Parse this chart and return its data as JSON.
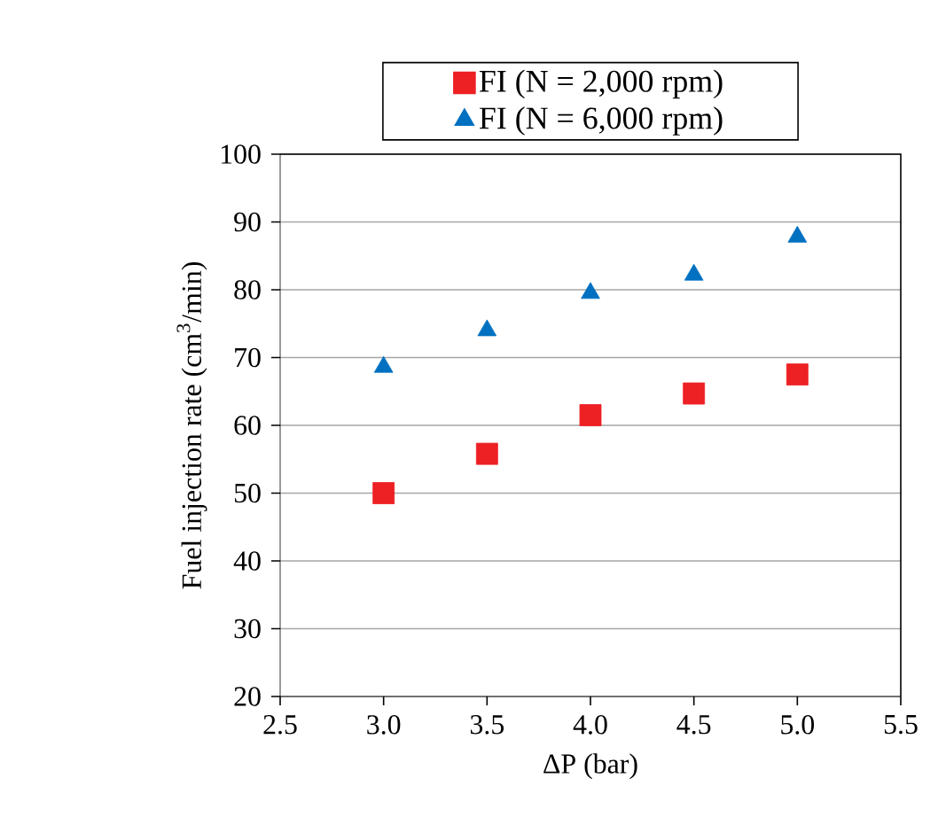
{
  "chart_data": {
    "type": "scatter",
    "xlabel": "ΔP (bar)",
    "ylabel": "Fuel injection rate (cm$^{3}$/min)",
    "x": [
      3.0,
      3.5,
      4.0,
      4.5,
      5.0
    ],
    "series": [
      {
        "name": "FI (N = 2,000 rpm)",
        "color": "#ed2024",
        "marker": "square",
        "values": [
          50.0,
          55.8,
          61.5,
          64.7,
          67.5
        ]
      },
      {
        "name": "FI (N = 6,000 rpm)",
        "color": "#0070c0",
        "marker": "triangle",
        "values": [
          68.6,
          74.0,
          79.5,
          82.2,
          87.8
        ]
      }
    ],
    "xlim": [
      2.5,
      5.5
    ],
    "ylim": [
      20,
      100
    ],
    "xticks": [
      {
        "value": 2.5,
        "label": "2.5"
      },
      {
        "value": 3,
        "label": "3.0"
      },
      {
        "value": 3.5,
        "label": "3.5"
      },
      {
        "value": 4,
        "label": "4.0"
      },
      {
        "value": 4.5,
        "label": "4.5"
      },
      {
        "value": 5,
        "label": "5.0"
      },
      {
        "value": 5.5,
        "label": "5.5"
      }
    ],
    "yticks": [
      20,
      30,
      40,
      50,
      60,
      70,
      80,
      90,
      100
    ],
    "grid": "y",
    "legend": "top"
  }
}
